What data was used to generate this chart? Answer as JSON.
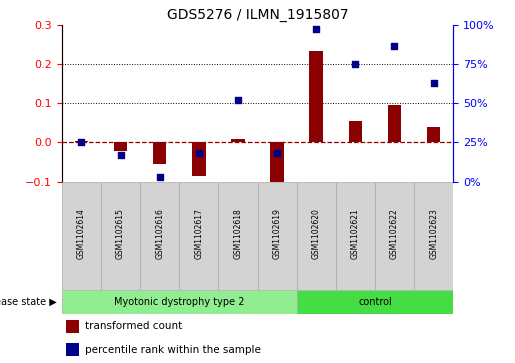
{
  "title": "GDS5276 / ILMN_1915807",
  "samples": [
    "GSM1102614",
    "GSM1102615",
    "GSM1102616",
    "GSM1102617",
    "GSM1102618",
    "GSM1102619",
    "GSM1102620",
    "GSM1102621",
    "GSM1102622",
    "GSM1102623"
  ],
  "transformed_count": [
    0.003,
    -0.022,
    -0.055,
    -0.085,
    0.01,
    -0.11,
    0.235,
    0.055,
    0.095,
    0.04
  ],
  "percentile_rank_right": [
    25,
    17,
    3,
    18,
    52,
    18,
    98,
    75,
    87,
    63
  ],
  "ylim_left": [
    -0.1,
    0.3
  ],
  "ylim_right": [
    0,
    100
  ],
  "yticks_left": [
    -0.1,
    0.0,
    0.1,
    0.2,
    0.3
  ],
  "yticks_right": [
    0,
    25,
    50,
    75,
    100
  ],
  "groups": [
    {
      "label": "Myotonic dystrophy type 2",
      "start": 0,
      "end": 6,
      "color": "#90EE90"
    },
    {
      "label": "control",
      "start": 6,
      "end": 10,
      "color": "#44DD44"
    }
  ],
  "bar_color": "#8B0000",
  "dot_color": "#00008B",
  "bar_width": 0.35,
  "zero_line_color": "#8B0000",
  "disease_state_label": "disease state",
  "legend_bar_label": "transformed count",
  "legend_dot_label": "percentile rank within the sample",
  "label_box_color": "#d3d3d3",
  "border_color": "#aaaaaa"
}
